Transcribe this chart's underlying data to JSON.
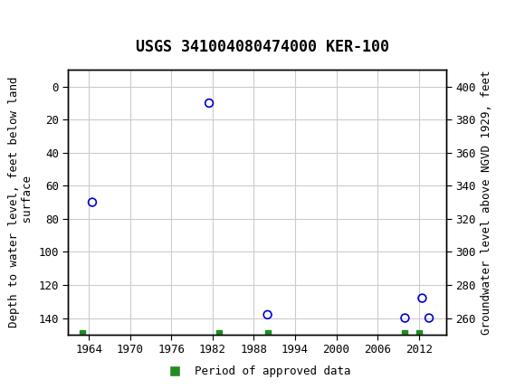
{
  "title": "USGS 341004080474000 KER-100",
  "header_bg_color": "#1a6b3c",
  "plot_bg_color": "#ffffff",
  "grid_color": "#cccccc",
  "scatter_color": "#0000cc",
  "approved_color": "#228B22",
  "left_ylabel": "Depth to water level, feet below land\n surface",
  "right_ylabel": "Groundwater level above NGVD 1929, feet",
  "xlabel_ticks": [
    1964,
    1970,
    1976,
    1982,
    1988,
    1994,
    2000,
    2006,
    2012
  ],
  "xlim": [
    1961,
    2016
  ],
  "ylim_left": [
    150,
    -10
  ],
  "ylim_right": [
    250,
    410
  ],
  "left_yticks": [
    0,
    20,
    40,
    60,
    80,
    100,
    120,
    140
  ],
  "right_yticks": [
    260,
    280,
    300,
    320,
    340,
    360,
    380,
    400
  ],
  "scatter_x": [
    1964.5,
    1981.5,
    1990.0,
    2010.0,
    2012.5,
    2013.5
  ],
  "scatter_y_left": [
    70,
    10,
    138,
    140,
    128,
    140
  ],
  "approved_x": [
    1963,
    1983,
    1990,
    2010,
    2012
  ],
  "legend_label": "Period of approved data",
  "font_family": "DejaVu Sans Mono"
}
